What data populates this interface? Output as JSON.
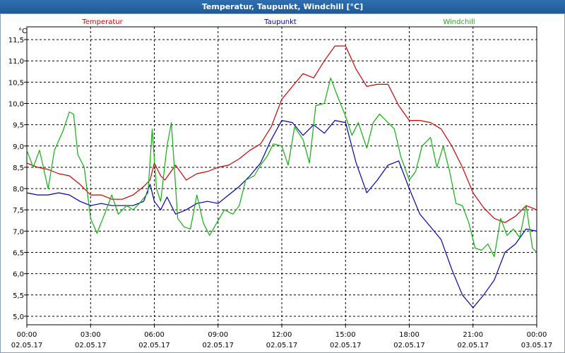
{
  "window": {
    "title": "Temperatur, Taupunkt, Windchill [°C]"
  },
  "chart_data": {
    "type": "line",
    "title": "Temperatur, Taupunkt, Windchill [°C]",
    "y_unit": "°C",
    "ylim": [
      4.8,
      11.8
    ],
    "y_ticks": [
      "5,0",
      "5,5",
      "6,0",
      "6,5",
      "7,0",
      "7,5",
      "8,0",
      "8,5",
      "9,0",
      "9,5",
      "10,0",
      "10,5",
      "11,0",
      "11,5"
    ],
    "x_ticks": [
      {
        "time": "00:00",
        "date": "02.05.17"
      },
      {
        "time": "03:00",
        "date": "02.05.17"
      },
      {
        "time": "06:00",
        "date": "02.05.17"
      },
      {
        "time": "09:00",
        "date": "02.05.17"
      },
      {
        "time": "12:00",
        "date": "02.05.17"
      },
      {
        "time": "15:00",
        "date": "02.05.17"
      },
      {
        "time": "18:00",
        "date": "02.05.17"
      },
      {
        "time": "21:00",
        "date": "02.05.17"
      },
      {
        "time": "00:00",
        "date": "03.05.17"
      }
    ],
    "grid": true,
    "series": [
      {
        "name": "Temperatur",
        "color": "#d00000",
        "points": [
          [
            0,
            8.6
          ],
          [
            0.5,
            8.5
          ],
          [
            1,
            8.45
          ],
          [
            1.5,
            8.35
          ],
          [
            2,
            8.3
          ],
          [
            2.5,
            8.1
          ],
          [
            3,
            7.85
          ],
          [
            3.5,
            7.85
          ],
          [
            4,
            7.75
          ],
          [
            4.5,
            7.75
          ],
          [
            5,
            7.85
          ],
          [
            5.5,
            8.05
          ],
          [
            5.8,
            8.2
          ],
          [
            6,
            8.6
          ],
          [
            6.3,
            8.3
          ],
          [
            6.5,
            8.2
          ],
          [
            7,
            8.55
          ],
          [
            7.5,
            8.2
          ],
          [
            8,
            8.35
          ],
          [
            8.5,
            8.4
          ],
          [
            9,
            8.5
          ],
          [
            9.5,
            8.55
          ],
          [
            10,
            8.7
          ],
          [
            10.5,
            8.9
          ],
          [
            11,
            9.05
          ],
          [
            11.5,
            9.45
          ],
          [
            12,
            10.1
          ],
          [
            12.5,
            10.4
          ],
          [
            13,
            10.7
          ],
          [
            13.5,
            10.6
          ],
          [
            14,
            11.0
          ],
          [
            14.5,
            11.35
          ],
          [
            15,
            11.35
          ],
          [
            15.5,
            10.8
          ],
          [
            16,
            10.4
          ],
          [
            16.5,
            10.45
          ],
          [
            17,
            10.45
          ],
          [
            17.5,
            9.95
          ],
          [
            18,
            9.6
          ],
          [
            18.5,
            9.6
          ],
          [
            19,
            9.55
          ],
          [
            19.5,
            9.4
          ],
          [
            20,
            9.0
          ],
          [
            20.5,
            8.5
          ],
          [
            21,
            7.9
          ],
          [
            21.5,
            7.55
          ],
          [
            22,
            7.3
          ],
          [
            22.5,
            7.2
          ],
          [
            23,
            7.35
          ],
          [
            23.5,
            7.6
          ],
          [
            24,
            7.5
          ]
        ]
      },
      {
        "name": "Taupunkt",
        "color": "#0000b0",
        "points": [
          [
            0,
            7.9
          ],
          [
            0.5,
            7.85
          ],
          [
            1,
            7.85
          ],
          [
            1.5,
            7.9
          ],
          [
            2,
            7.85
          ],
          [
            2.5,
            7.7
          ],
          [
            3,
            7.6
          ],
          [
            3.5,
            7.65
          ],
          [
            4,
            7.6
          ],
          [
            4.5,
            7.6
          ],
          [
            5,
            7.6
          ],
          [
            5.5,
            7.7
          ],
          [
            5.8,
            8.1
          ],
          [
            6,
            7.7
          ],
          [
            6.3,
            7.5
          ],
          [
            6.6,
            7.8
          ],
          [
            7,
            7.4
          ],
          [
            7.5,
            7.5
          ],
          [
            8,
            7.65
          ],
          [
            8.5,
            7.7
          ],
          [
            9,
            7.65
          ],
          [
            9.5,
            7.85
          ],
          [
            10,
            8.05
          ],
          [
            10.5,
            8.3
          ],
          [
            11,
            8.6
          ],
          [
            11.5,
            9.15
          ],
          [
            12,
            9.6
          ],
          [
            12.5,
            9.55
          ],
          [
            13,
            9.25
          ],
          [
            13.5,
            9.5
          ],
          [
            14,
            9.3
          ],
          [
            14.5,
            9.6
          ],
          [
            15,
            9.55
          ],
          [
            15.5,
            8.6
          ],
          [
            16,
            7.9
          ],
          [
            16.5,
            8.2
          ],
          [
            17,
            8.55
          ],
          [
            17.5,
            8.65
          ],
          [
            18,
            8.0
          ],
          [
            18.5,
            7.4
          ],
          [
            19,
            7.1
          ],
          [
            19.5,
            6.8
          ],
          [
            20,
            6.1
          ],
          [
            20.5,
            5.5
          ],
          [
            21,
            5.2
          ],
          [
            21.5,
            5.5
          ],
          [
            22,
            5.85
          ],
          [
            22.5,
            6.5
          ],
          [
            23,
            6.7
          ],
          [
            23.5,
            7.05
          ],
          [
            24,
            7.0
          ]
        ]
      },
      {
        "name": "Windchill",
        "color": "#10b010",
        "points": [
          [
            0,
            8.9
          ],
          [
            0.3,
            8.5
          ],
          [
            0.6,
            8.9
          ],
          [
            1,
            8.0
          ],
          [
            1.3,
            8.9
          ],
          [
            1.7,
            9.35
          ],
          [
            2,
            9.8
          ],
          [
            2.2,
            9.75
          ],
          [
            2.4,
            8.8
          ],
          [
            2.7,
            8.5
          ],
          [
            3,
            7.3
          ],
          [
            3.3,
            6.95
          ],
          [
            3.7,
            7.45
          ],
          [
            4,
            7.85
          ],
          [
            4.3,
            7.4
          ],
          [
            4.7,
            7.6
          ],
          [
            5,
            7.5
          ],
          [
            5.3,
            7.65
          ],
          [
            5.7,
            7.9
          ],
          [
            5.9,
            9.4
          ],
          [
            6.1,
            8.0
          ],
          [
            6.3,
            7.7
          ],
          [
            6.6,
            9.0
          ],
          [
            6.8,
            9.55
          ],
          [
            7.1,
            7.3
          ],
          [
            7.4,
            7.1
          ],
          [
            7.7,
            7.05
          ],
          [
            8,
            7.85
          ],
          [
            8.3,
            7.2
          ],
          [
            8.6,
            6.9
          ],
          [
            9,
            7.25
          ],
          [
            9.3,
            7.5
          ],
          [
            9.7,
            7.4
          ],
          [
            10,
            7.6
          ],
          [
            10.3,
            8.2
          ],
          [
            10.7,
            8.3
          ],
          [
            11,
            8.55
          ],
          [
            11.3,
            8.75
          ],
          [
            11.6,
            9.05
          ],
          [
            12,
            9.0
          ],
          [
            12.3,
            8.55
          ],
          [
            12.6,
            9.45
          ],
          [
            13,
            9.15
          ],
          [
            13.3,
            8.6
          ],
          [
            13.6,
            9.95
          ],
          [
            14,
            10.0
          ],
          [
            14.3,
            10.6
          ],
          [
            14.6,
            10.2
          ],
          [
            15,
            9.7
          ],
          [
            15.3,
            9.25
          ],
          [
            15.6,
            9.55
          ],
          [
            16,
            8.95
          ],
          [
            16.3,
            9.55
          ],
          [
            16.6,
            9.75
          ],
          [
            17,
            9.55
          ],
          [
            17.3,
            9.4
          ],
          [
            17.6,
            8.75
          ],
          [
            18,
            8.2
          ],
          [
            18.3,
            8.4
          ],
          [
            18.6,
            9.0
          ],
          [
            19,
            9.2
          ],
          [
            19.3,
            8.5
          ],
          [
            19.6,
            9.0
          ],
          [
            19.9,
            8.4
          ],
          [
            20.2,
            7.65
          ],
          [
            20.5,
            7.6
          ],
          [
            20.8,
            7.2
          ],
          [
            21.1,
            6.6
          ],
          [
            21.4,
            6.55
          ],
          [
            21.7,
            6.7
          ],
          [
            22,
            6.4
          ],
          [
            22.3,
            7.3
          ],
          [
            22.6,
            6.9
          ],
          [
            22.9,
            7.05
          ],
          [
            23.2,
            6.85
          ],
          [
            23.5,
            7.6
          ],
          [
            23.8,
            6.6
          ],
          [
            24,
            6.5
          ]
        ]
      }
    ]
  }
}
